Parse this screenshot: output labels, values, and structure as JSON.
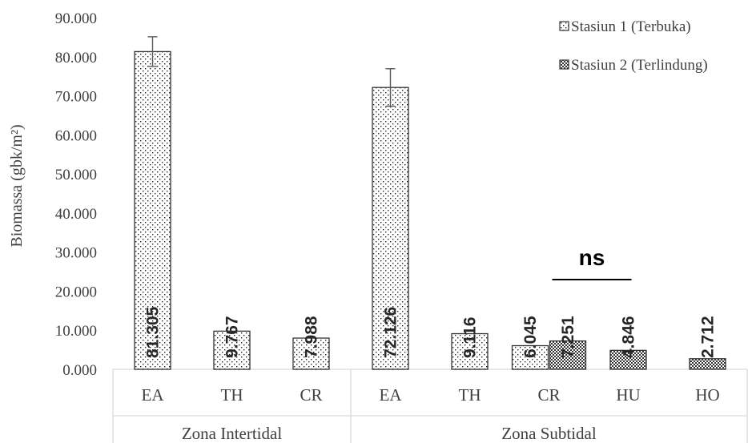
{
  "chart_data": {
    "type": "bar",
    "title": "",
    "ylabel": "Biomassa (gbk/m²)",
    "xlabel": "",
    "ylim": [
      0,
      90
    ],
    "yticks": [
      "0.000",
      "10.000",
      "20.000",
      "30.000",
      "40.000",
      "50.000",
      "60.000",
      "70.000",
      "80.000",
      "90.000"
    ],
    "grid": false,
    "legend_position": "top-right",
    "groups": [
      {
        "name": "Zona Intertidal",
        "categories": [
          "EA",
          "TH",
          "CR"
        ]
      },
      {
        "name": "Zona Subtidal",
        "categories": [
          "EA",
          "TH",
          "CR",
          "HU",
          "HO"
        ]
      }
    ],
    "series": [
      {
        "name": "Stasiun 1 (Terbuka)",
        "pattern": "dots",
        "values": [
          81.305,
          9.767,
          7.988,
          72.126,
          9.116,
          6.045,
          null,
          null
        ],
        "labels": [
          "81.305",
          "9.767",
          "7.988",
          "72.126",
          "9.116",
          "6.045",
          "",
          ""
        ],
        "errors": [
          3.8,
          null,
          null,
          4.8,
          null,
          null,
          null,
          null
        ]
      },
      {
        "name": "Stasiun 2 (Terlindung)",
        "pattern": "checker",
        "values": [
          null,
          null,
          null,
          null,
          null,
          7.251,
          4.846,
          2.712
        ],
        "labels": [
          "",
          "",
          "",
          "",
          "",
          "7.251",
          "4.846",
          "2.712"
        ],
        "errors": [
          null,
          null,
          null,
          null,
          null,
          null,
          null,
          null
        ]
      }
    ],
    "annotation": {
      "text": "ns",
      "from_category_index": 5,
      "to_category_index": 6
    }
  }
}
